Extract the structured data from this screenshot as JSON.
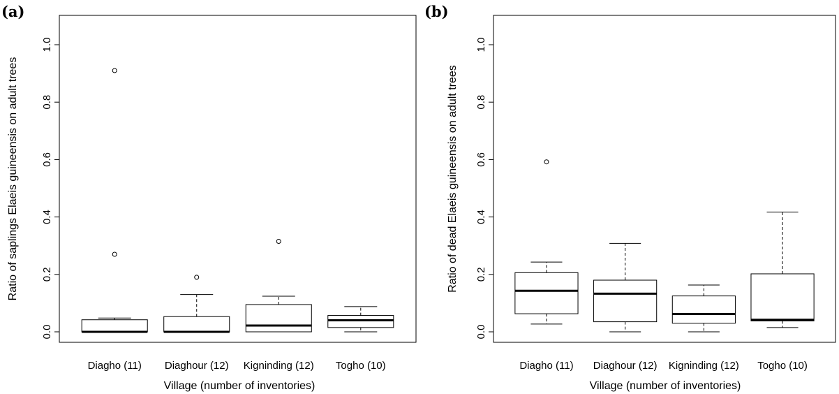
{
  "panels": [
    {
      "label": "(a)"
    },
    {
      "label": "(b)"
    }
  ],
  "chart_data": [
    {
      "type": "box",
      "panel": "(a)",
      "xlabel": "Village (number of inventories)",
      "ylabel": "Ratio of saplings Elaeis guineensis on adult trees",
      "ylim": [
        0,
        1.0
      ],
      "yticks": [
        "0.0",
        "0.2",
        "0.4",
        "0.6",
        "0.8",
        "1.0"
      ],
      "categories": [
        "Diagho (11)",
        "Diaghour (12)",
        "Kigninding (12)",
        "Togho (10)"
      ],
      "boxes": [
        {
          "whisker_low": 0.0,
          "q1": 0.0,
          "median": 0.0,
          "q3": 0.042,
          "whisker_high": 0.048,
          "outliers": [
            0.27,
            0.91
          ]
        },
        {
          "whisker_low": 0.0,
          "q1": 0.0,
          "median": 0.0,
          "q3": 0.053,
          "whisker_high": 0.13,
          "outliers": [
            0.19
          ]
        },
        {
          "whisker_low": 0.0,
          "q1": 0.0,
          "median": 0.022,
          "q3": 0.095,
          "whisker_high": 0.124,
          "outliers": [
            0.315
          ]
        },
        {
          "whisker_low": 0.0,
          "q1": 0.015,
          "median": 0.04,
          "q3": 0.057,
          "whisker_high": 0.088,
          "outliers": []
        }
      ],
      "grid": false,
      "legend": "none"
    },
    {
      "type": "box",
      "panel": "(b)",
      "xlabel": "Village (number of inventories)",
      "ylabel": "Ratio of dead Elaeis guineensis on adult trees",
      "ylim": [
        0,
        1.0
      ],
      "yticks": [
        "0.0",
        "0.2",
        "0.4",
        "0.6",
        "0.8",
        "1.0"
      ],
      "categories": [
        "Diagho (11)",
        "Diaghour (12)",
        "Kigninding (12)",
        "Togho (10)"
      ],
      "boxes": [
        {
          "whisker_low": 0.027,
          "q1": 0.063,
          "median": 0.143,
          "q3": 0.206,
          "whisker_high": 0.243,
          "outliers": [
            0.592
          ]
        },
        {
          "whisker_low": 0.0,
          "q1": 0.035,
          "median": 0.133,
          "q3": 0.18,
          "whisker_high": 0.308,
          "outliers": []
        },
        {
          "whisker_low": 0.0,
          "q1": 0.03,
          "median": 0.062,
          "q3": 0.125,
          "whisker_high": 0.163,
          "outliers": []
        },
        {
          "whisker_low": 0.015,
          "q1": 0.038,
          "median": 0.042,
          "q3": 0.202,
          "whisker_high": 0.417,
          "outliers": []
        }
      ],
      "grid": false,
      "legend": "none"
    }
  ]
}
